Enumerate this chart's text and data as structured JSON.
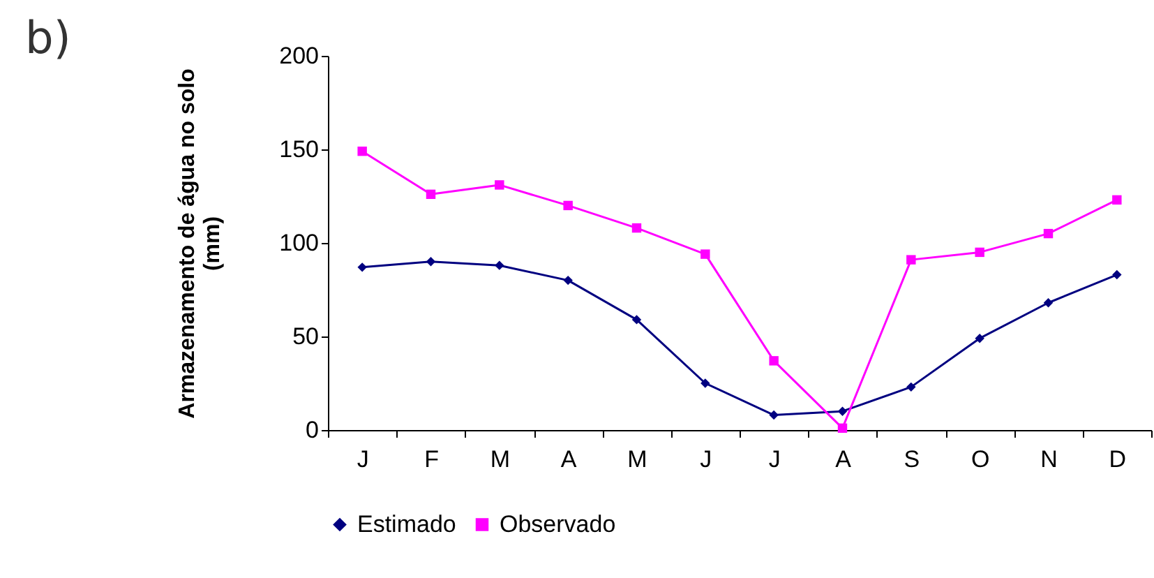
{
  "chart_data": {
    "type": "line",
    "title": "b)",
    "ylabel": "Armazenamento de água no solo (mm)",
    "categories": [
      "J",
      "F",
      "M",
      "A",
      "M",
      "J",
      "J",
      "A",
      "S",
      "O",
      "N",
      "D"
    ],
    "series": [
      {
        "name": "Estimado",
        "color": "#000080",
        "marker": "diamond",
        "values": [
          87,
          90,
          88,
          80,
          59,
          25,
          8,
          10,
          23,
          49,
          68,
          83
        ]
      },
      {
        "name": "Observado",
        "color": "#ff00ff",
        "marker": "square",
        "values": [
          149,
          126,
          131,
          120,
          108,
          94,
          37,
          1,
          91,
          95,
          105,
          123
        ]
      }
    ],
    "ylim": [
      0,
      200
    ],
    "yticks": [
      0,
      50,
      100,
      150,
      200
    ],
    "grid": false,
    "legend": "bottom",
    "line_style": "solid"
  }
}
